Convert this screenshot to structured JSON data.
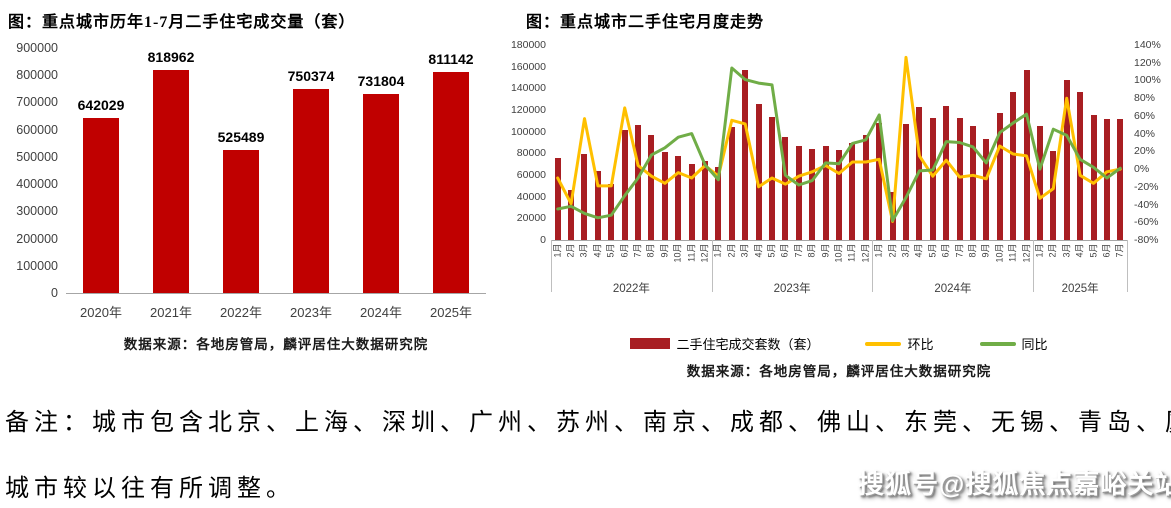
{
  "chart_data": [
    {
      "type": "bar",
      "title": "图：重点城市历年1-7月二手住宅成交量（套）",
      "source": "数据来源：各地房管局，麟评居住大数据研究院",
      "categories": [
        "2020年",
        "2021年",
        "2022年",
        "2023年",
        "2024年",
        "2025年"
      ],
      "values": [
        642029,
        818962,
        525489,
        750374,
        731804,
        811142
      ],
      "data_labels": [
        "642029",
        "818962",
        "525489",
        "750374",
        "731804",
        "811142"
      ],
      "bar_color": "#C00000",
      "ylim": [
        0,
        900000
      ],
      "y_ticks": [
        "900000",
        "800000",
        "700000",
        "600000",
        "500000",
        "400000",
        "300000",
        "200000",
        "100000",
        "0"
      ],
      "grid": false,
      "legend_position": "none"
    },
    {
      "type": "combo-bar-line",
      "title": "图：重点城市二手住宅月度走势",
      "source": "数据来源：各地房管局，麟评居住大数据研究院",
      "left_axis": {
        "ylim": [
          0,
          180000
        ],
        "ticks": [
          "180000",
          "160000",
          "140000",
          "120000",
          "100000",
          "80000",
          "60000",
          "40000",
          "20000",
          "0"
        ]
      },
      "right_axis": {
        "ylim": [
          -80,
          140
        ],
        "ticks": [
          "140%",
          "120%",
          "100%",
          "80%",
          "60%",
          "40%",
          "20%",
          "0%",
          "-20%",
          "-40%",
          "-60%",
          "-80%"
        ]
      },
      "x_groups": [
        {
          "year": "2022年",
          "months": [
            "1月",
            "2月",
            "3月",
            "4月",
            "5月",
            "6月",
            "7月",
            "8月",
            "9月",
            "10月",
            "11月",
            "12月"
          ]
        },
        {
          "year": "2023年",
          "months": [
            "1月",
            "2月",
            "3月",
            "4月",
            "5月",
            "6月",
            "7月",
            "8月",
            "9月",
            "10月",
            "11月",
            "12月"
          ]
        },
        {
          "year": "2024年",
          "months": [
            "1月",
            "2月",
            "3月",
            "4月",
            "5月",
            "6月",
            "7月",
            "8月",
            "9月",
            "10月",
            "11月",
            "12月"
          ]
        },
        {
          "year": "2025年",
          "months": [
            "1月",
            "2月",
            "3月",
            "4月",
            "5月",
            "6月",
            "7月"
          ]
        }
      ],
      "series": [
        {
          "name": "二手住宅成交套数（套）",
          "type": "bar",
          "axis": "left",
          "color": "#A81E22",
          "values": [
            76000,
            46000,
            79000,
            64000,
            52000,
            102000,
            106000,
            97000,
            81000,
            78000,
            70000,
            73000,
            67000,
            104000,
            157000,
            126000,
            114000,
            95000,
            87000,
            84000,
            87000,
            83000,
            90000,
            97000,
            108000,
            44000,
            107000,
            123000,
            113000,
            124000,
            113000,
            105000,
            93000,
            117000,
            137000,
            157000,
            105000,
            82000,
            148000,
            137000,
            115000,
            112000,
            112000
          ]
        },
        {
          "name": "环比",
          "type": "line",
          "axis": "right",
          "color": "#FFC000",
          "values": [
            -10,
            -39,
            57,
            -19,
            -19,
            69,
            4,
            -8,
            -16,
            -4,
            -10,
            4,
            -8,
            55,
            51,
            -20,
            -10,
            -17,
            -8,
            -3,
            4,
            -5,
            8,
            8,
            11,
            -59,
            126,
            15,
            -8,
            10,
            -9,
            -7,
            -11,
            26,
            17,
            15,
            -33,
            -22,
            80,
            -7,
            -16,
            -3,
            0
          ]
        },
        {
          "name": "同比",
          "type": "line",
          "axis": "right",
          "color": "#70AD47",
          "values": [
            -45,
            -42,
            -50,
            -55,
            -52,
            -30,
            -10,
            16,
            24,
            36,
            40,
            5,
            -12,
            114,
            101,
            97,
            95,
            -7,
            -18,
            -13,
            7,
            6,
            29,
            33,
            61,
            -58,
            -32,
            -2,
            -1,
            31,
            30,
            25,
            7,
            41,
            52,
            62,
            0,
            45,
            38,
            11,
            2,
            -10,
            1
          ]
        }
      ],
      "legend": [
        {
          "label": "二手住宅成交套数（套）",
          "color": "#A81E22",
          "type": "bar"
        },
        {
          "label": "环比",
          "color": "#FFC000",
          "type": "line"
        },
        {
          "label": "同比",
          "color": "#70AD47",
          "type": "line"
        }
      ],
      "grid": false,
      "legend_position": "bottom"
    }
  ],
  "note": {
    "line1": "备注：城市包含北京、上海、深圳、广州、苏州、南京、成都、佛山、东莞、无锡、青岛、厦门、郑州，",
    "line2": "城市较以往有所调整。"
  },
  "watermark": "搜狐号@搜狐焦点嘉峪关站"
}
